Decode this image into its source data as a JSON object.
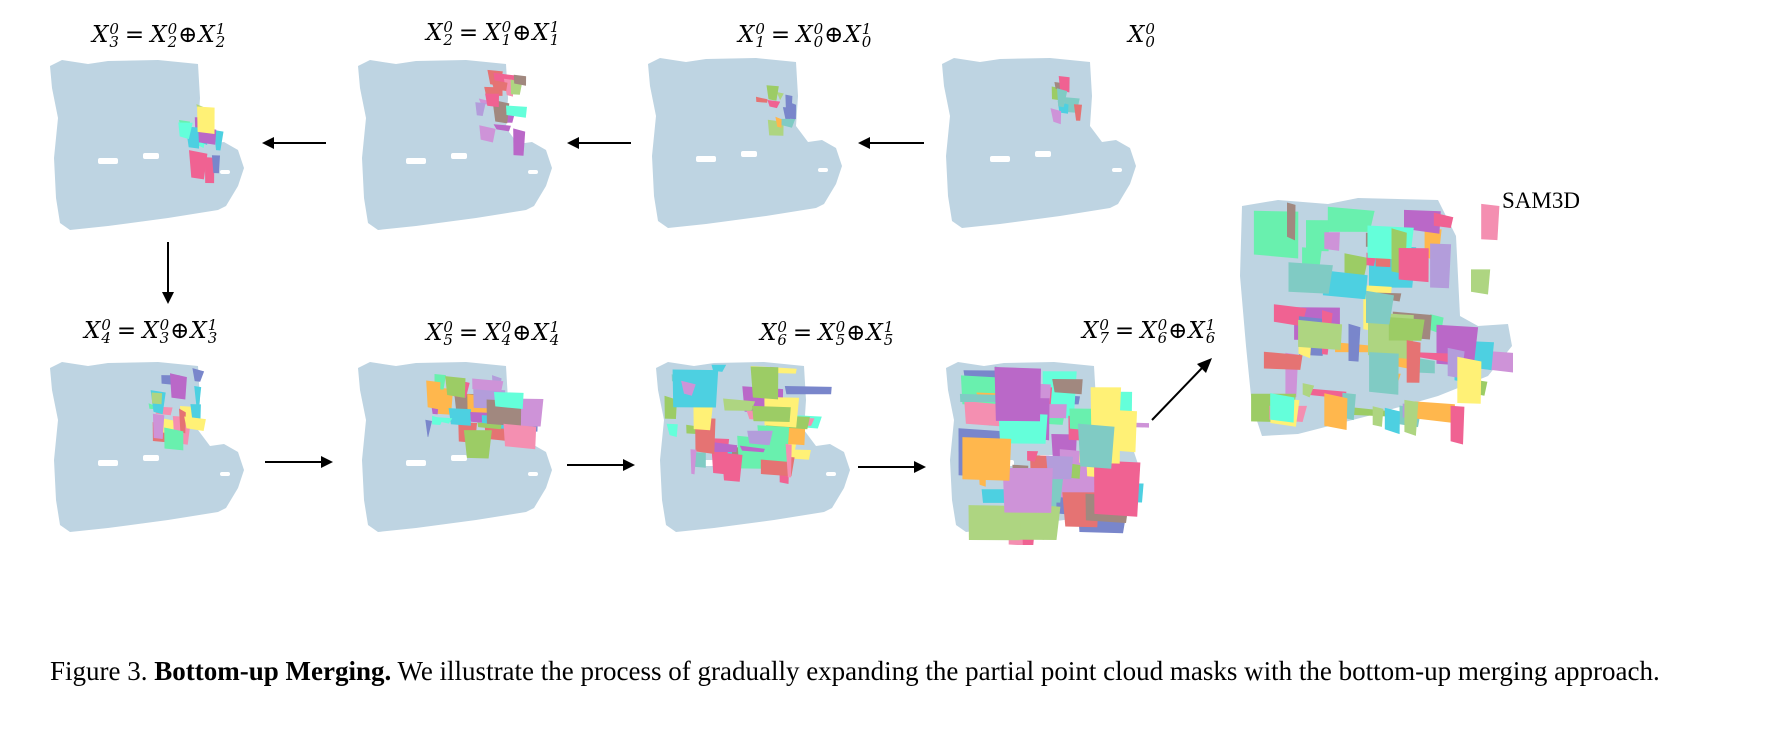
{
  "panels_top": [
    {
      "id": "p3",
      "lhs": "X",
      "lhs_sub": "3",
      "lhs_sup": "0",
      "has_rhs": true,
      "a": "X",
      "a_sub": "2",
      "a_sup": "0",
      "b": "X",
      "b_sub": "2",
      "b_sup": "1"
    },
    {
      "id": "p2",
      "lhs": "X",
      "lhs_sub": "2",
      "lhs_sup": "0",
      "has_rhs": true,
      "a": "X",
      "a_sub": "1",
      "a_sup": "0",
      "b": "X",
      "b_sub": "1",
      "b_sup": "1"
    },
    {
      "id": "p1",
      "lhs": "X",
      "lhs_sub": "1",
      "lhs_sup": "0",
      "has_rhs": true,
      "a": "X",
      "a_sub": "0",
      "a_sup": "0",
      "b": "X",
      "b_sub": "0",
      "b_sup": "1"
    },
    {
      "id": "p0",
      "lhs": "X",
      "lhs_sub": "0",
      "lhs_sup": "0",
      "has_rhs": false
    }
  ],
  "panels_bottom": [
    {
      "id": "p4",
      "lhs": "X",
      "lhs_sub": "4",
      "lhs_sup": "0",
      "has_rhs": true,
      "a": "X",
      "a_sub": "3",
      "a_sup": "0",
      "b": "X",
      "b_sub": "3",
      "b_sup": "1"
    },
    {
      "id": "p5",
      "lhs": "X",
      "lhs_sub": "5",
      "lhs_sup": "0",
      "has_rhs": true,
      "a": "X",
      "a_sub": "4",
      "a_sup": "0",
      "b": "X",
      "b_sub": "4",
      "b_sup": "1"
    },
    {
      "id": "p6",
      "lhs": "X",
      "lhs_sub": "6",
      "lhs_sup": "0",
      "has_rhs": true,
      "a": "X",
      "a_sub": "5",
      "a_sup": "0",
      "b": "X",
      "b_sub": "5",
      "b_sup": "1"
    },
    {
      "id": "p7",
      "lhs": "X",
      "lhs_sub": "7",
      "lhs_sup": "0",
      "has_rhs": true,
      "a": "X",
      "a_sub": "6",
      "a_sup": "0",
      "b": "X",
      "b_sub": "6",
      "b_sup": "1"
    }
  ],
  "equals": "=",
  "oplus": "⊕",
  "sam_label": "SAM3D",
  "caption": {
    "prefix": "Figure 3.",
    "bold": "Bottom-up Merging.",
    "text": "We illustrate the process of gradually expanding the partial point cloud masks with the bottom-up merging approach."
  },
  "colors": {
    "base_cloud": "#bed4e2",
    "arrow": "#000000",
    "segment_palette": [
      "#f48fb1",
      "#9ccc65",
      "#ba68c8",
      "#4dd0e1",
      "#ffb74d",
      "#7986cb",
      "#e57373",
      "#aed581",
      "#f06292",
      "#64ffda",
      "#b39ddb",
      "#fff176",
      "#80cbc4",
      "#a1887f",
      "#ce93d8",
      "#69f0ae"
    ]
  }
}
